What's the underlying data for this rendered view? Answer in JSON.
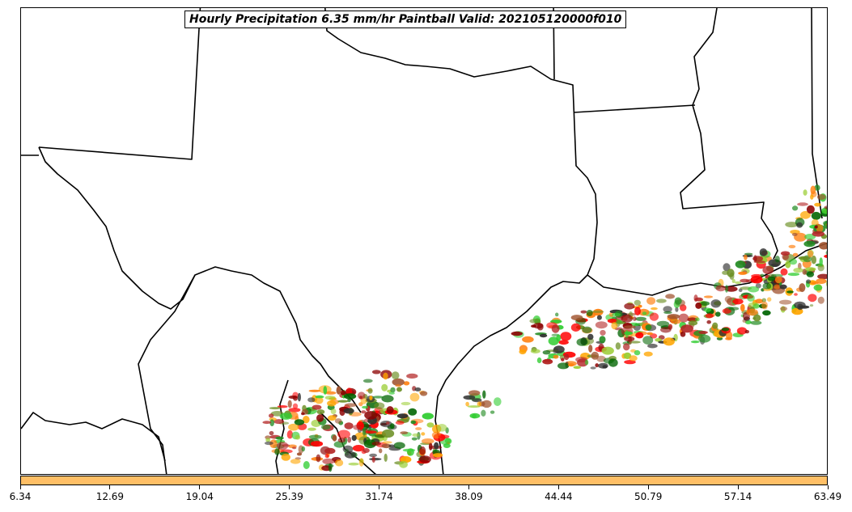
{
  "title": "Hourly Precipitation 6.35 mm/hr Paintball Valid: 202105120000f010",
  "colorbar": {
    "color": "#ffbf66",
    "ticks": [
      "6.34",
      "12.69",
      "19.04",
      "25.39",
      "31.74",
      "38.09",
      "44.44",
      "50.79",
      "57.14",
      "63.49"
    ]
  },
  "member_colors": [
    "#ff0000",
    "#ff7f0e",
    "#ffa500",
    "#8b0000",
    "#32cd32",
    "#228b22",
    "#006400",
    "#6b8e23",
    "#9acd32",
    "#b22222",
    "#2f2f2f",
    "#a0522d"
  ]
}
